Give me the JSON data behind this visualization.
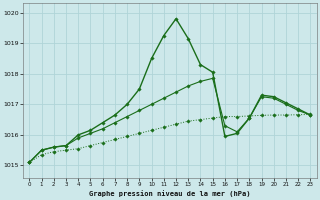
{
  "title": "Graphe pression niveau de la mer (hPa)",
  "bg_color": "#cde8ea",
  "grid_color": "#b0d4d8",
  "line_color": "#1a6e1a",
  "xlim": [
    -0.5,
    23.5
  ],
  "ylim": [
    1014.6,
    1020.3
  ],
  "yticks": [
    1015,
    1016,
    1017,
    1018,
    1019,
    1020
  ],
  "xticks": [
    0,
    1,
    2,
    3,
    4,
    5,
    6,
    7,
    8,
    9,
    10,
    11,
    12,
    13,
    14,
    15,
    16,
    17,
    18,
    19,
    20,
    21,
    22,
    23
  ],
  "series_peak_x": [
    0,
    1,
    2,
    3,
    4,
    5,
    6,
    7,
    8,
    9,
    10,
    11,
    12,
    13,
    14,
    15,
    16,
    17,
    18,
    19,
    20,
    21,
    22,
    23
  ],
  "series_peak_y": [
    1015.1,
    1015.5,
    1015.6,
    1015.65,
    1016.0,
    1016.15,
    1016.4,
    1016.65,
    1017.0,
    1017.5,
    1018.5,
    1019.25,
    1019.8,
    1019.15,
    1018.3,
    1018.05,
    1015.95,
    1016.05,
    1016.55,
    1017.3,
    1017.25,
    1017.05,
    1016.85,
    1016.65
  ],
  "series_mid_x": [
    0,
    1,
    2,
    3,
    4,
    5,
    6,
    7,
    8,
    9,
    10,
    11,
    12,
    13,
    14,
    15,
    16,
    17,
    18,
    19,
    20,
    21,
    22,
    23
  ],
  "series_mid_y": [
    1015.1,
    1015.5,
    1015.6,
    1015.65,
    1015.9,
    1016.05,
    1016.2,
    1016.4,
    1016.6,
    1016.8,
    1017.0,
    1017.2,
    1017.4,
    1017.6,
    1017.75,
    1017.85,
    1016.3,
    1016.1,
    1016.55,
    1017.25,
    1017.2,
    1017.0,
    1016.8,
    1016.65
  ],
  "series_diag_x": [
    0,
    1,
    2,
    3,
    4,
    5,
    6,
    7,
    8,
    9,
    10,
    11,
    12,
    13,
    14,
    15,
    16,
    17,
    18,
    19,
    20,
    21,
    22,
    23
  ],
  "series_diag_y": [
    1015.1,
    1015.35,
    1015.45,
    1015.5,
    1015.55,
    1015.65,
    1015.75,
    1015.85,
    1015.95,
    1016.05,
    1016.15,
    1016.25,
    1016.35,
    1016.45,
    1016.5,
    1016.55,
    1016.6,
    1016.6,
    1016.62,
    1016.64,
    1016.65,
    1016.65,
    1016.66,
    1016.67
  ]
}
